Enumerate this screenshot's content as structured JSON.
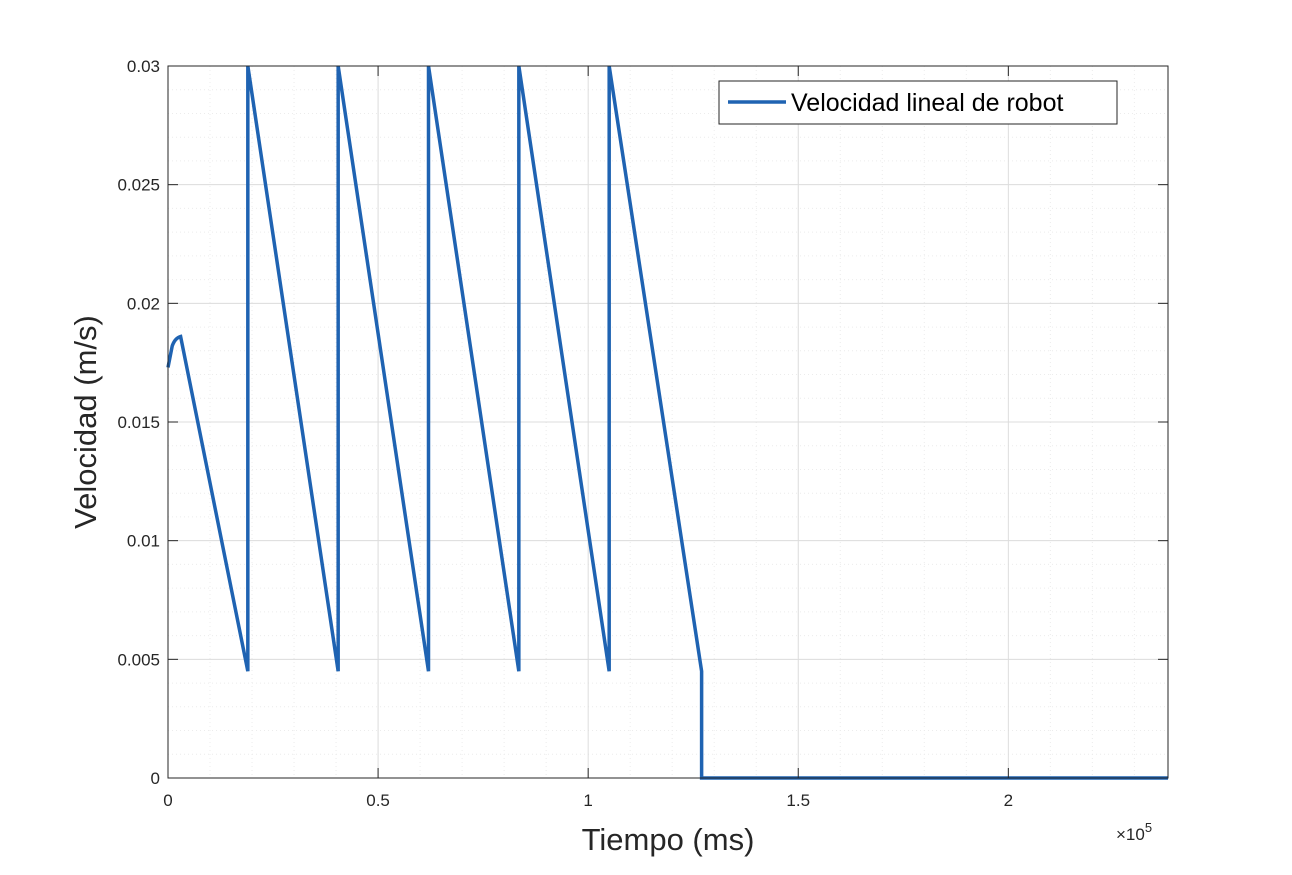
{
  "chart_data": {
    "type": "line",
    "xlabel": "Tiempo (ms)",
    "ylabel": "Velocidad (m/s)",
    "xlim": [
      0,
      238000
    ],
    "ylim": [
      0,
      0.03
    ],
    "x_ticks": [
      0,
      50000,
      100000,
      150000,
      200000
    ],
    "x_tick_labels": [
      "0",
      "0.5",
      "1",
      "1.5",
      "2"
    ],
    "x_exponent_label": "×10",
    "x_exponent_power": "5",
    "y_ticks": [
      0,
      0.005,
      0.01,
      0.015,
      0.02,
      0.025,
      0.03
    ],
    "y_tick_labels": [
      "0",
      "0.005",
      "0.01",
      "0.015",
      "0.02",
      "0.025",
      "0.03"
    ],
    "grid": true,
    "minor_grid": true,
    "legend": {
      "placement": "top-right",
      "entries": [
        "Velocidad lineal de robot"
      ]
    },
    "series": [
      {
        "name": "Velocidad lineal de robot",
        "color": "#1f63b2",
        "x": [
          0,
          1000,
          3000,
          19000,
          19000,
          40500,
          40500,
          62000,
          62000,
          83500,
          83500,
          105000,
          105000,
          127000,
          127000,
          238000
        ],
        "y": [
          0.0173,
          0.0182,
          0.0186,
          0.0045,
          0.03,
          0.0045,
          0.03,
          0.0045,
          0.03,
          0.0045,
          0.03,
          0.0045,
          0.03,
          0.0045,
          0,
          0
        ],
        "segment_shapes": [
          "ramp",
          "ramp",
          "decay",
          "jump",
          "decay",
          "jump",
          "decay",
          "jump",
          "decay",
          "jump",
          "decay",
          "jump",
          "decay",
          "drop",
          "flat"
        ]
      }
    ]
  },
  "colors": {
    "series": "#1f63b2",
    "axes": "#262626",
    "grid_major": "#dcdcdc",
    "grid_minor": "#ececec"
  }
}
